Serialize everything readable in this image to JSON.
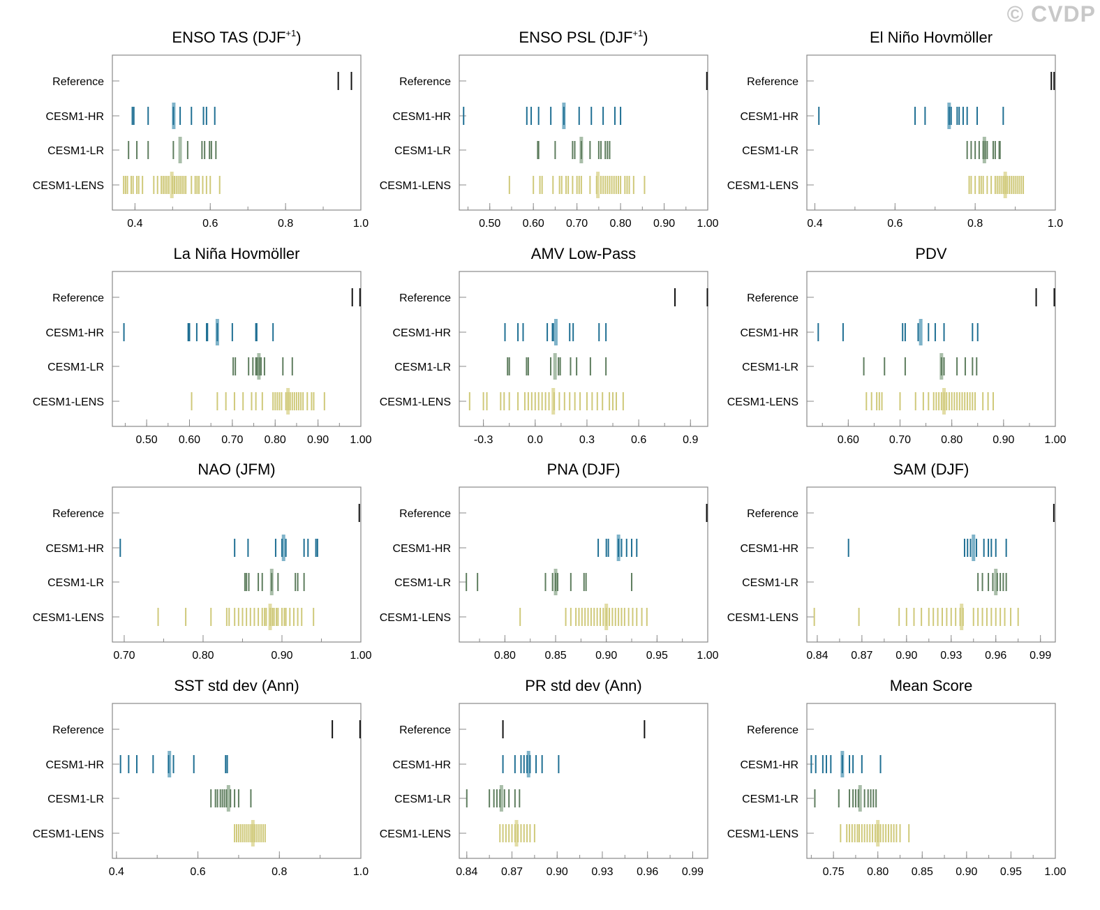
{
  "watermark": "© CVDP",
  "row_labels": [
    "Reference",
    "CESM1-HR",
    "CESM1-LR",
    "CESM1-LENS"
  ],
  "colors": {
    "reference": "#111111",
    "hr": "#1f6f93",
    "hr_mean": "#7fb3c9",
    "lr": "#5e7d5e",
    "lr_mean": "#a9bea9",
    "lens": "#cfc97a",
    "lens_mean": "#e2dda6",
    "axis": "#888888"
  },
  "chart_data": [
    {
      "type": "strip",
      "title": "ENSO TAS (DJF",
      "title_sup": "+1",
      "title_end": ")",
      "xlim": [
        0.34,
        1.0
      ],
      "ticks": [
        0.4,
        0.6,
        0.8,
        1.0
      ],
      "tick_labels": [
        "0.4",
        "0.6",
        "0.8",
        "1.0"
      ],
      "series": {
        "reference": [
          0.94,
          0.975
        ],
        "hr": {
          "values": [
            0.393,
            0.397,
            0.435,
            0.502,
            0.52,
            0.55,
            0.582,
            0.59,
            0.612
          ],
          "mean": 0.503
        },
        "lr": {
          "values": [
            0.383,
            0.405,
            0.435,
            0.502,
            0.54,
            0.578,
            0.585,
            0.598,
            0.603,
            0.615
          ],
          "mean": 0.52
        },
        "lens": {
          "values": [
            0.37,
            0.375,
            0.38,
            0.39,
            0.395,
            0.405,
            0.41,
            0.42,
            0.45,
            0.46,
            0.47,
            0.475,
            0.48,
            0.485,
            0.49,
            0.5,
            0.505,
            0.51,
            0.515,
            0.52,
            0.525,
            0.53,
            0.535,
            0.55,
            0.56,
            0.565,
            0.57,
            0.58,
            0.59,
            0.6,
            0.625
          ],
          "mean": 0.498
        }
      }
    },
    {
      "type": "strip",
      "title": "ENSO PSL (DJF",
      "title_sup": "+1",
      "title_end": ")",
      "xlim": [
        0.43,
        1.0
      ],
      "ticks": [
        0.5,
        0.6,
        0.7,
        0.8,
        0.9,
        1.0
      ],
      "tick_labels": [
        "0.50",
        "0.60",
        "0.70",
        "0.80",
        "0.90",
        "1.00"
      ],
      "series": {
        "reference": [
          0.998
        ],
        "hr": {
          "values": [
            0.44,
            0.585,
            0.595,
            0.612,
            0.64,
            0.67,
            0.705,
            0.733,
            0.76,
            0.787,
            0.8
          ],
          "mean": 0.67
        },
        "lr": {
          "values": [
            0.61,
            0.612,
            0.65,
            0.69,
            0.695,
            0.71,
            0.73,
            0.75,
            0.755,
            0.765,
            0.77,
            0.775
          ],
          "mean": 0.71
        },
        "lens": {
          "values": [
            0.545,
            0.6,
            0.615,
            0.62,
            0.645,
            0.66,
            0.665,
            0.675,
            0.68,
            0.69,
            0.7,
            0.705,
            0.71,
            0.73,
            0.745,
            0.755,
            0.76,
            0.765,
            0.77,
            0.775,
            0.78,
            0.785,
            0.79,
            0.795,
            0.8,
            0.81,
            0.815,
            0.82,
            0.83,
            0.855
          ],
          "mean": 0.748
        }
      }
    },
    {
      "type": "strip",
      "title": "El Niño Hovmöller",
      "title_sup": "",
      "title_end": "",
      "xlim": [
        0.38,
        1.0
      ],
      "ticks": [
        0.4,
        0.6,
        0.8,
        1.0
      ],
      "tick_labels": [
        "0.4",
        "0.6",
        "0.8",
        "1.0"
      ],
      "series": {
        "reference": [
          0.99,
          0.997
        ],
        "hr": {
          "values": [
            0.41,
            0.65,
            0.675,
            0.735,
            0.74,
            0.755,
            0.76,
            0.77,
            0.78,
            0.805,
            0.87
          ],
          "mean": 0.735
        },
        "lr": {
          "values": [
            0.78,
            0.79,
            0.8,
            0.81,
            0.82,
            0.825,
            0.83,
            0.845,
            0.85,
            0.86,
            0.862
          ],
          "mean": 0.823
        },
        "lens": {
          "values": [
            0.785,
            0.79,
            0.8,
            0.81,
            0.815,
            0.82,
            0.83,
            0.84,
            0.85,
            0.855,
            0.86,
            0.865,
            0.87,
            0.875,
            0.88,
            0.885,
            0.89,
            0.895,
            0.9,
            0.905,
            0.91,
            0.915,
            0.92
          ],
          "mean": 0.875
        }
      }
    },
    {
      "type": "strip",
      "title": "La Niña Hovmöller",
      "title_sup": "",
      "title_end": "",
      "xlim": [
        0.42,
        1.0
      ],
      "ticks": [
        0.5,
        0.6,
        0.7,
        0.8,
        0.9,
        1.0
      ],
      "tick_labels": [
        "0.50",
        "0.60",
        "0.70",
        "0.80",
        "0.90",
        "1.00"
      ],
      "series": {
        "reference": [
          0.98,
          0.998
        ],
        "hr": {
          "values": [
            0.447,
            0.597,
            0.6,
            0.617,
            0.64,
            0.642,
            0.665,
            0.7,
            0.755,
            0.757,
            0.795
          ],
          "mean": 0.665
        },
        "lr": {
          "values": [
            0.702,
            0.707,
            0.738,
            0.748,
            0.755,
            0.758,
            0.763,
            0.767,
            0.775,
            0.818,
            0.84
          ],
          "mean": 0.762
        },
        "lens": {
          "values": [
            0.605,
            0.665,
            0.685,
            0.705,
            0.725,
            0.745,
            0.755,
            0.77,
            0.795,
            0.8,
            0.805,
            0.81,
            0.815,
            0.825,
            0.83,
            0.835,
            0.84,
            0.845,
            0.85,
            0.855,
            0.86,
            0.865,
            0.875,
            0.885,
            0.89,
            0.915
          ],
          "mean": 0.83
        }
      }
    },
    {
      "type": "strip",
      "title": "AMV Low-Pass",
      "title_sup": "",
      "title_end": "",
      "xlim": [
        -0.44,
        1.0
      ],
      "ticks": [
        -0.3,
        0.0,
        0.3,
        0.6,
        0.9
      ],
      "tick_labels": [
        "-0.3",
        "0.0",
        "0.3",
        "0.6",
        "0.9"
      ],
      "series": {
        "reference": [
          0.81,
          0.998
        ],
        "hr": {
          "values": [
            -0.175,
            -0.1,
            -0.07,
            0.07,
            0.1,
            0.105,
            0.2,
            0.22,
            0.37,
            0.41
          ],
          "mean": 0.12
        },
        "lr": {
          "values": [
            -0.16,
            -0.15,
            -0.05,
            -0.04,
            0.09,
            0.135,
            0.145,
            0.205,
            0.24,
            0.32,
            0.41
          ],
          "mean": 0.115
        },
        "lens": {
          "values": [
            -0.38,
            -0.3,
            -0.28,
            -0.2,
            -0.18,
            -0.15,
            -0.1,
            -0.06,
            -0.04,
            -0.02,
            0.0,
            0.02,
            0.04,
            0.06,
            0.08,
            0.11,
            0.14,
            0.17,
            0.2,
            0.23,
            0.26,
            0.3,
            0.33,
            0.36,
            0.39,
            0.43,
            0.45,
            0.47,
            0.51
          ],
          "mean": 0.105
        }
      }
    },
    {
      "type": "strip",
      "title": "PDV",
      "title_sup": "",
      "title_end": "",
      "xlim": [
        0.52,
        1.0
      ],
      "ticks": [
        0.6,
        0.7,
        0.8,
        0.9,
        1.0
      ],
      "tick_labels": [
        "0.60",
        "0.70",
        "0.80",
        "0.90",
        "1.00"
      ],
      "series": {
        "reference": [
          0.963,
          0.998
        ],
        "hr": {
          "values": [
            0.542,
            0.59,
            0.705,
            0.71,
            0.735,
            0.755,
            0.768,
            0.785,
            0.84,
            0.85
          ],
          "mean": 0.74
        },
        "lr": {
          "values": [
            0.63,
            0.67,
            0.71,
            0.78,
            0.785,
            0.81,
            0.826,
            0.84,
            0.848
          ],
          "mean": 0.78
        },
        "lens": {
          "values": [
            0.635,
            0.645,
            0.655,
            0.66,
            0.665,
            0.7,
            0.73,
            0.745,
            0.755,
            0.765,
            0.77,
            0.775,
            0.78,
            0.785,
            0.79,
            0.795,
            0.8,
            0.805,
            0.81,
            0.815,
            0.82,
            0.825,
            0.83,
            0.835,
            0.84,
            0.845,
            0.86,
            0.87,
            0.88
          ],
          "mean": 0.785
        }
      }
    },
    {
      "type": "strip",
      "title": "NAO (JFM)",
      "title_sup": "",
      "title_end": "",
      "xlim": [
        0.685,
        1.0
      ],
      "ticks": [
        0.7,
        0.8,
        0.9,
        1.0
      ],
      "tick_labels": [
        "0.70",
        "0.80",
        "0.90",
        "1.00"
      ],
      "series": {
        "reference": [
          0.998
        ],
        "hr": {
          "values": [
            0.695,
            0.84,
            0.857,
            0.892,
            0.9,
            0.905,
            0.928,
            0.933,
            0.943,
            0.945
          ],
          "mean": 0.902
        },
        "lr": {
          "values": [
            0.853,
            0.855,
            0.858,
            0.87,
            0.875,
            0.887,
            0.895,
            0.917,
            0.92,
            0.928
          ],
          "mean": 0.887
        },
        "lens": {
          "values": [
            0.743,
            0.778,
            0.81,
            0.83,
            0.833,
            0.84,
            0.845,
            0.85,
            0.855,
            0.86,
            0.865,
            0.87,
            0.875,
            0.878,
            0.88,
            0.885,
            0.888,
            0.89,
            0.893,
            0.895,
            0.9,
            0.903,
            0.905,
            0.91,
            0.915,
            0.92,
            0.925,
            0.94
          ],
          "mean": 0.885
        }
      }
    },
    {
      "type": "strip",
      "title": "PNA (DJF)",
      "title_sup": "",
      "title_end": "",
      "xlim": [
        0.755,
        1.0
      ],
      "ticks": [
        0.8,
        0.85,
        0.9,
        0.95,
        1.0
      ],
      "tick_labels": [
        "0.80",
        "0.85",
        "0.90",
        "0.95",
        "1.00"
      ],
      "series": {
        "reference": [
          0.999
        ],
        "hr": {
          "values": [
            0.892,
            0.9,
            0.902,
            0.912,
            0.915,
            0.92,
            0.925,
            0.93
          ],
          "mean": 0.912
        },
        "lr": {
          "values": [
            0.762,
            0.773,
            0.84,
            0.847,
            0.85,
            0.852,
            0.865,
            0.878,
            0.88,
            0.925
          ],
          "mean": 0.85
        },
        "lens": {
          "values": [
            0.815,
            0.86,
            0.865,
            0.87,
            0.873,
            0.876,
            0.879,
            0.882,
            0.885,
            0.888,
            0.891,
            0.894,
            0.897,
            0.9,
            0.903,
            0.906,
            0.909,
            0.912,
            0.915,
            0.918,
            0.922,
            0.926,
            0.93,
            0.935,
            0.94
          ],
          "mean": 0.9
        }
      }
    },
    {
      "type": "strip",
      "title": "SAM (DJF)",
      "title_sup": "",
      "title_end": "",
      "xlim": [
        0.833,
        1.0
      ],
      "ticks": [
        0.84,
        0.87,
        0.9,
        0.93,
        0.96,
        0.99
      ],
      "tick_labels": [
        "0.84",
        "0.87",
        "0.90",
        "0.93",
        "0.96",
        "0.99"
      ],
      "series": {
        "reference": [
          0.999
        ],
        "hr": {
          "values": [
            0.861,
            0.939,
            0.941,
            0.943,
            0.947,
            0.952,
            0.955,
            0.957,
            0.96,
            0.967
          ],
          "mean": 0.945
        },
        "lr": {
          "values": [
            0.948,
            0.951,
            0.955,
            0.958,
            0.961,
            0.963,
            0.965,
            0.967
          ],
          "mean": 0.96
        },
        "lens": {
          "values": [
            0.838,
            0.868,
            0.895,
            0.9,
            0.905,
            0.91,
            0.915,
            0.918,
            0.921,
            0.924,
            0.927,
            0.93,
            0.933,
            0.936,
            0.938,
            0.945,
            0.948,
            0.951,
            0.954,
            0.957,
            0.96,
            0.963,
            0.966,
            0.97,
            0.975
          ],
          "mean": 0.937
        }
      }
    },
    {
      "type": "strip",
      "title": "SST std dev (Ann)",
      "title_sup": "",
      "title_end": "",
      "xlim": [
        0.39,
        1.0
      ],
      "ticks": [
        0.4,
        0.6,
        0.8,
        1.0
      ],
      "tick_labels": [
        "0.4",
        "0.6",
        "0.8",
        "1.0"
      ],
      "series": {
        "reference": [
          0.93,
          0.998
        ],
        "hr": {
          "values": [
            0.41,
            0.43,
            0.45,
            0.49,
            0.528,
            0.54,
            0.59,
            0.668,
            0.672
          ],
          "mean": 0.53
        },
        "lr": {
          "values": [
            0.632,
            0.643,
            0.648,
            0.655,
            0.66,
            0.665,
            0.67,
            0.68,
            0.69,
            0.7,
            0.73
          ],
          "mean": 0.675
        },
        "lens": {
          "values": [
            0.69,
            0.695,
            0.7,
            0.705,
            0.71,
            0.715,
            0.72,
            0.725,
            0.73,
            0.735,
            0.74,
            0.745,
            0.75,
            0.755,
            0.76,
            0.765
          ],
          "mean": 0.735
        }
      }
    },
    {
      "type": "strip",
      "title": "PR std dev (Ann)",
      "title_sup": "",
      "title_end": "",
      "xlim": [
        0.835,
        1.0
      ],
      "ticks": [
        0.84,
        0.87,
        0.9,
        0.93,
        0.96,
        0.99
      ],
      "tick_labels": [
        "0.84",
        "0.87",
        "0.90",
        "0.93",
        "0.96",
        "0.99"
      ],
      "series": {
        "reference": [
          0.864,
          0.958
        ],
        "hr": {
          "values": [
            0.864,
            0.872,
            0.876,
            0.878,
            0.88,
            0.882,
            0.886,
            0.89,
            0.901
          ],
          "mean": 0.881
        },
        "lr": {
          "values": [
            0.84,
            0.855,
            0.858,
            0.86,
            0.862,
            0.865,
            0.868,
            0.872,
            0.875
          ],
          "mean": 0.863
        },
        "lens": {
          "values": [
            0.862,
            0.864,
            0.866,
            0.868,
            0.87,
            0.872,
            0.874,
            0.876,
            0.878,
            0.88,
            0.882,
            0.885
          ],
          "mean": 0.873
        }
      }
    },
    {
      "type": "strip",
      "title": "Mean Score",
      "title_sup": "",
      "title_end": "",
      "xlim": [
        0.72,
        1.0
      ],
      "ticks": [
        0.75,
        0.8,
        0.85,
        0.9,
        0.95,
        1.0
      ],
      "tick_labels": [
        "0.75",
        "0.80",
        "0.85",
        "0.90",
        "0.95",
        "1.00"
      ],
      "series": {
        "reference": [],
        "hr": {
          "values": [
            0.725,
            0.73,
            0.738,
            0.742,
            0.747,
            0.76,
            0.768,
            0.772,
            0.782,
            0.803
          ],
          "mean": 0.76
        },
        "lr": {
          "values": [
            0.729,
            0.756,
            0.768,
            0.772,
            0.775,
            0.778,
            0.785,
            0.789,
            0.792,
            0.795,
            0.798
          ],
          "mean": 0.78
        },
        "lens": {
          "values": [
            0.758,
            0.765,
            0.768,
            0.771,
            0.774,
            0.777,
            0.779,
            0.782,
            0.785,
            0.788,
            0.791,
            0.794,
            0.797,
            0.8,
            0.803,
            0.806,
            0.809,
            0.812,
            0.815,
            0.818,
            0.821,
            0.825,
            0.835
          ],
          "mean": 0.8
        }
      }
    }
  ]
}
